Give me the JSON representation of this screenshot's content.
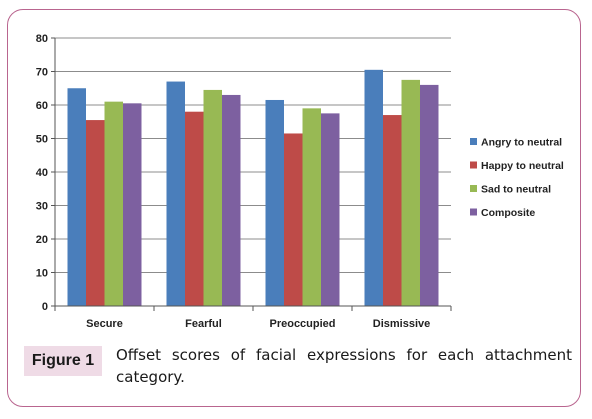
{
  "figure": {
    "label": "Figure 1",
    "caption": "Offset scores of facial expressions for each attachment category."
  },
  "colors": {
    "frame_border": "#b9658f",
    "label_background": "#efdbe6"
  },
  "chart_data": {
    "type": "bar",
    "title": "",
    "xlabel": "",
    "ylabel": "",
    "ylim": [
      0,
      80
    ],
    "yticks": [
      0,
      10,
      20,
      30,
      40,
      50,
      60,
      70,
      80
    ],
    "grid": true,
    "legend_position": "right",
    "categories": [
      "Secure",
      "Fearful",
      "Preoccupied",
      "Dismissive"
    ],
    "series": [
      {
        "name": "Angry to neutral",
        "color": "#4a7ebb",
        "values": [
          65,
          67,
          61.5,
          70.5
        ]
      },
      {
        "name": "Happy to neutral",
        "color": "#be4b48",
        "values": [
          55.5,
          58,
          51.5,
          57
        ]
      },
      {
        "name": "Sad to neutral",
        "color": "#98b954",
        "values": [
          61,
          64.5,
          59,
          67.5
        ]
      },
      {
        "name": "Composite",
        "color": "#7d60a0",
        "values": [
          60.5,
          63,
          57.5,
          66
        ]
      }
    ]
  }
}
